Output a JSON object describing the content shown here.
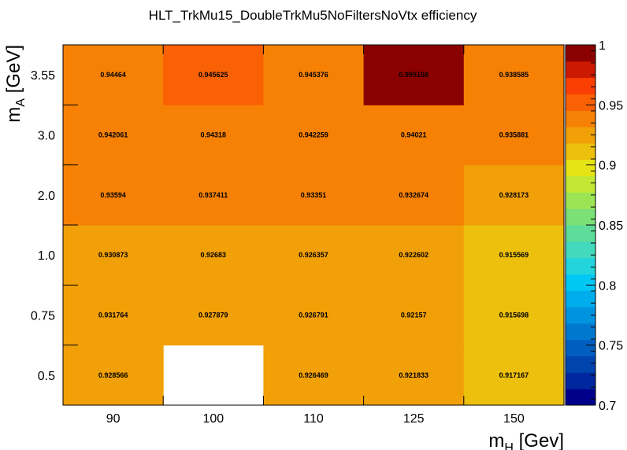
{
  "chart_data": {
    "type": "heatmap",
    "title": "HLT_TrkMu15_DoubleTrkMu5NoFiltersNoVtx efficiency",
    "xlabel": {
      "main": "m",
      "sub": "H",
      "unit": " [Gev]"
    },
    "ylabel": {
      "main": "m",
      "sub": "A",
      "unit": " [GeV]"
    },
    "x_categories": [
      "90",
      "100",
      "110",
      "125",
      "150"
    ],
    "y_categories": [
      "0.5",
      "0.75",
      "1.0",
      "2.0",
      "3.0",
      "3.55"
    ],
    "values": [
      [
        0.928566,
        null,
        0.926469,
        0.921833,
        0.917167
      ],
      [
        0.931764,
        0.927879,
        0.926791,
        0.92157,
        0.915698
      ],
      [
        0.930873,
        0.92683,
        0.926357,
        0.922602,
        0.915569
      ],
      [
        0.93594,
        0.937411,
        0.93351,
        0.932674,
        0.928173
      ],
      [
        0.942061,
        0.94318,
        0.942259,
        0.94021,
        0.935881
      ],
      [
        0.94464,
        0.945625,
        0.945376,
        0.995158,
        0.938585
      ]
    ],
    "zlim": [
      0.7,
      1.0
    ],
    "colorbar_ticks": [
      "0.7",
      "0.75",
      "0.8",
      "0.85",
      "0.9",
      "0.95",
      "1"
    ],
    "palette": [
      "#00008b",
      "#00279d",
      "#0044ae",
      "#005ec0",
      "#0078d0",
      "#0093df",
      "#00adec",
      "#00c8f5",
      "#22d4dc",
      "#43d9bc",
      "#5ddd99",
      "#7be076",
      "#9de454",
      "#c2e734",
      "#e6e414",
      "#ecc00c",
      "#f1a008",
      "#f68105",
      "#f96104",
      "#fb3f02",
      "#cc1a01",
      "#8b0000"
    ]
  }
}
